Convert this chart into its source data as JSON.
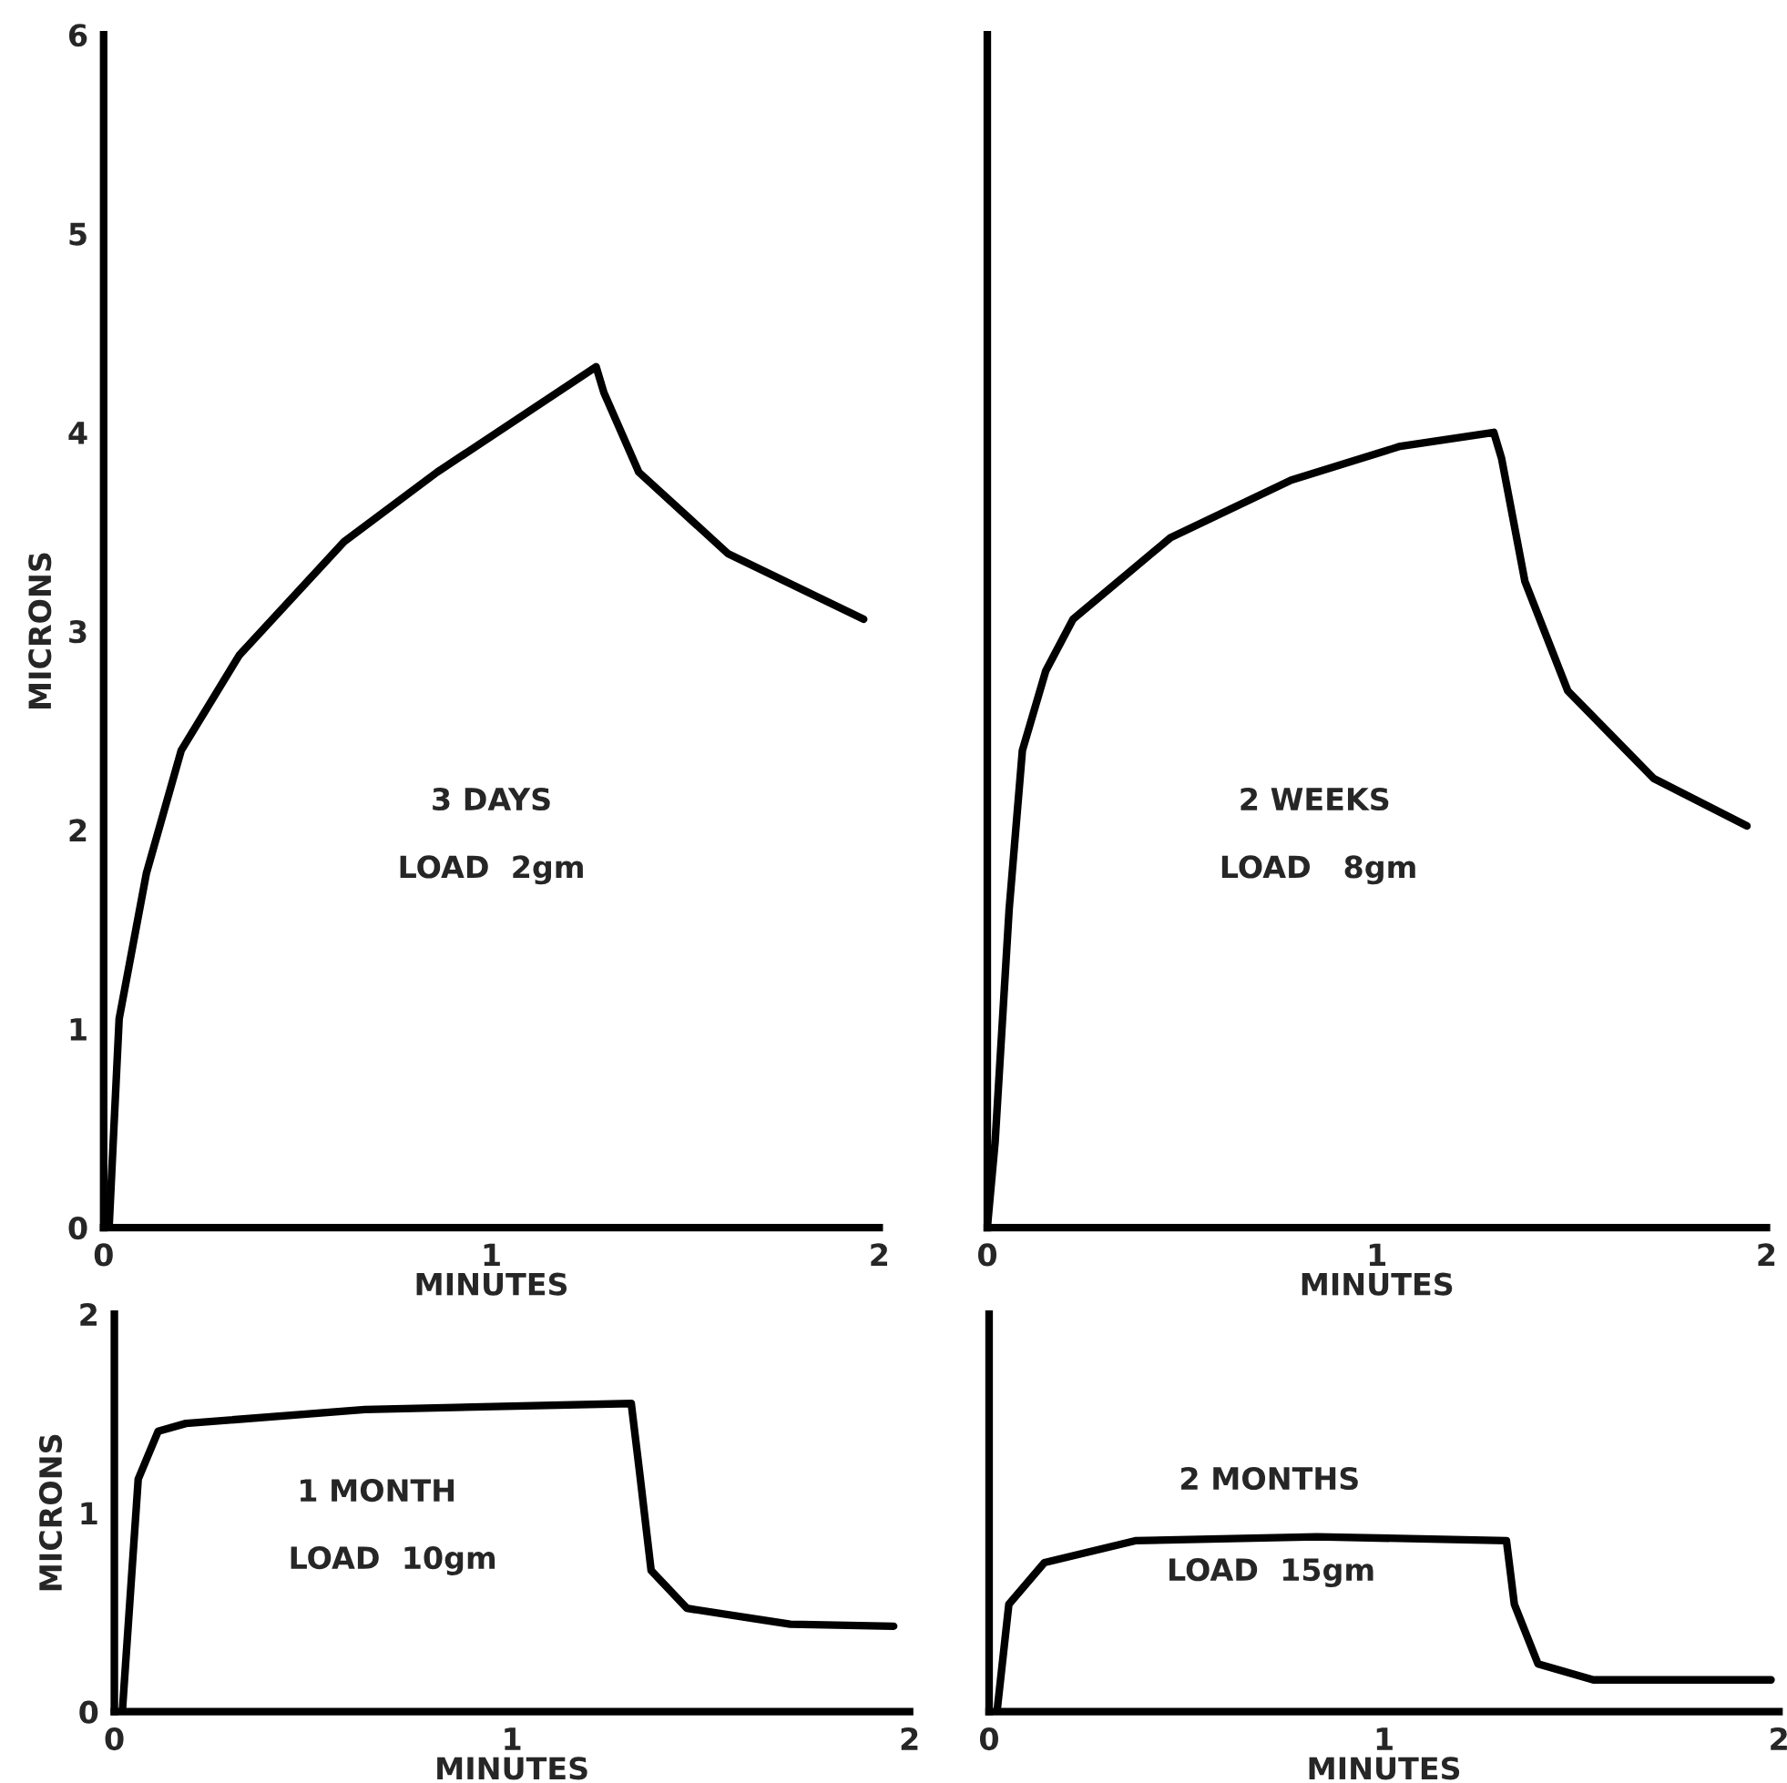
{
  "chart_data": [
    {
      "type": "line",
      "xlabel": "MINUTES",
      "ylabel": "MICRONS",
      "xlim": [
        0,
        2
      ],
      "ylim": [
        0,
        6
      ],
      "xticks": [
        0,
        1,
        2
      ],
      "yticks": [
        0,
        1,
        2,
        3,
        4,
        5,
        6
      ],
      "annotations": [
        "3 DAYS",
        "LOAD  2gm"
      ],
      "series": [
        {
          "color": "#000000",
          "x": [
            0.014,
            0.04,
            0.11,
            0.2,
            0.35,
            0.62,
            0.86,
            1.27,
            1.29,
            1.38,
            1.61,
            1.96
          ],
          "values": [
            0,
            1.05,
            1.78,
            2.4,
            2.88,
            3.45,
            3.8,
            4.33,
            4.2,
            3.8,
            3.39,
            3.06
          ]
        }
      ]
    },
    {
      "type": "line",
      "xlabel": "MINUTES",
      "xlim": [
        0,
        2
      ],
      "ylim": [
        0,
        6
      ],
      "xticks": [
        0,
        1,
        2
      ],
      "yticks": [
        0,
        1,
        2,
        3,
        4,
        5,
        6
      ],
      "tick_labels": "x",
      "annotations": [
        "2 WEEKS",
        "LOAD   8gm"
      ],
      "series": [
        {
          "color": "#000000",
          "x": [
            0.0,
            0.02,
            0.056,
            0.09,
            0.15,
            0.22,
            0.47,
            0.78,
            1.06,
            1.3,
            1.32,
            1.38,
            1.49,
            1.71,
            1.95
          ],
          "values": [
            0,
            0.43,
            1.6,
            2.4,
            2.8,
            3.06,
            3.47,
            3.76,
            3.93,
            4.0,
            3.87,
            3.25,
            2.7,
            2.26,
            2.02
          ]
        }
      ]
    },
    {
      "type": "line",
      "xlabel": "MINUTES",
      "ylabel": "MICRONS",
      "xlim": [
        0,
        2
      ],
      "ylim": [
        0,
        2
      ],
      "xticks": [
        0,
        1,
        2
      ],
      "yticks": [
        0,
        1,
        2
      ],
      "annotations": [
        "1 MONTH",
        "LOAD  10gm"
      ],
      "series": [
        {
          "color": "#000000",
          "x": [
            0.02,
            0.06,
            0.11,
            0.18,
            0.63,
            1.3,
            1.32,
            1.35,
            1.44,
            1.7,
            1.96
          ],
          "values": [
            0,
            1.17,
            1.41,
            1.45,
            1.52,
            1.55,
            1.22,
            0.71,
            0.52,
            0.44,
            0.43
          ]
        }
      ]
    },
    {
      "type": "line",
      "xlabel": "MINUTES",
      "xlim": [
        0,
        2
      ],
      "ylim": [
        0,
        2
      ],
      "xticks": [
        0,
        1,
        2
      ],
      "yticks": [
        0,
        1,
        2
      ],
      "tick_labels": "x",
      "annotations": [
        "2 MONTHS",
        "LOAD  15gm"
      ],
      "series": [
        {
          "color": "#000000",
          "x": [
            0.02,
            0.05,
            0.14,
            0.37,
            0.83,
            1.31,
            1.33,
            1.39,
            1.53,
            1.98
          ],
          "values": [
            0,
            0.54,
            0.75,
            0.86,
            0.88,
            0.86,
            0.54,
            0.24,
            0.16,
            0.16
          ]
        }
      ]
    }
  ]
}
